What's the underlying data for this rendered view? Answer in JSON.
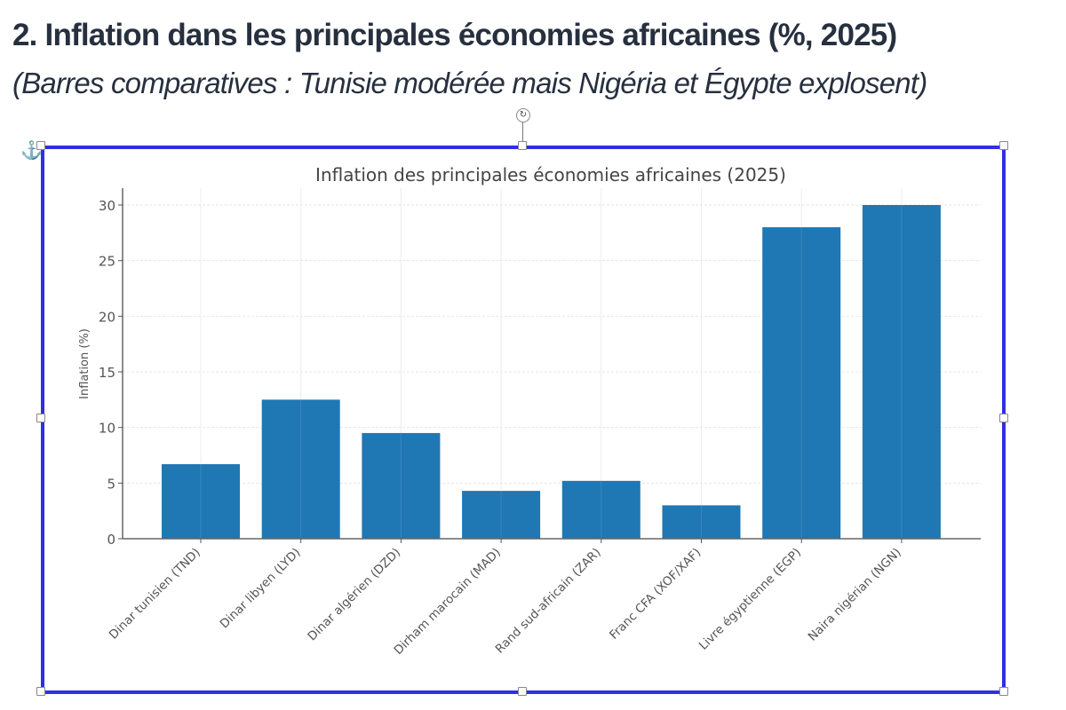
{
  "document": {
    "heading": "2. Inflation dans les principales économies africaines (%, 2025)",
    "subheading": "(Barres comparatives : Tunisie modérée mais Nigéria et Égypte explosent)"
  },
  "selection": {
    "anchor_icon": "anchor-icon",
    "rotate_icon": "rotate-handle-icon",
    "frame_color": "#2f2fe6"
  },
  "chart_data": {
    "type": "bar",
    "title": "Inflation des principales économies africaines (2025)",
    "xlabel": "",
    "ylabel": "Inflation (%)",
    "categories": [
      "Dinar tunisien (TND)",
      "Dinar libyen (LYD)",
      "Dinar algérien (DZD)",
      "Dirham marocain (MAD)",
      "Rand sud-africain (ZAR)",
      "Franc CFA (XOF/XAF)",
      "Livre égyptienne (EGP)",
      "Naira nigérian (NGN)"
    ],
    "values": [
      6.7,
      12.5,
      9.5,
      4.3,
      5.2,
      3.0,
      28.0,
      30.0
    ],
    "ylim": [
      0,
      31.5
    ],
    "yticks": [
      0,
      5,
      10,
      15,
      20,
      25,
      30
    ],
    "grid": true,
    "bar_color": "#1f77b4",
    "legend": "none"
  }
}
